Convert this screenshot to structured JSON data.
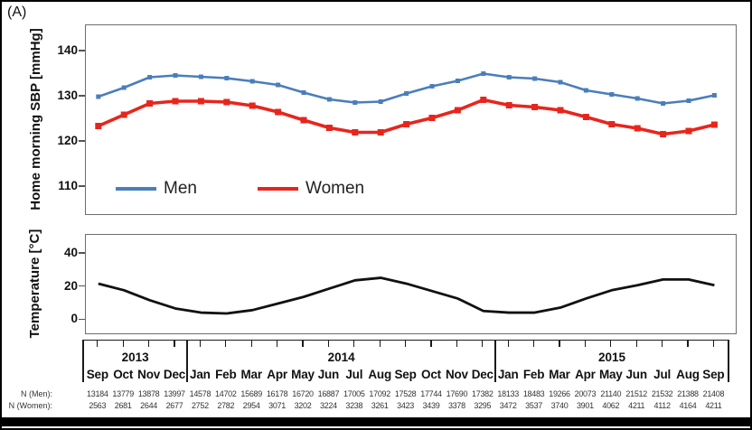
{
  "panel_label": "(A)",
  "sbp_chart": {
    "y_axis_label": "Home morning SBP [mmHg]",
    "y_ticks": [
      140,
      130,
      120,
      110
    ],
    "legend": [
      {
        "label": "Men",
        "color": "#4A7EBB"
      },
      {
        "label": "Women",
        "color": "#E8251C"
      }
    ]
  },
  "temp_chart": {
    "y_axis_label": "Temperature [°C]",
    "y_ticks": [
      40,
      20,
      0
    ]
  },
  "x_axis": {
    "year_groups": [
      {
        "year": "2013",
        "months": [
          "Sep",
          "Oct",
          "Nov",
          "Dec"
        ]
      },
      {
        "year": "2014",
        "months": [
          "Jan",
          "Feb",
          "Mar",
          "Apr",
          "May",
          "Jun",
          "Jul",
          "Aug",
          "Sep",
          "Oct",
          "Nov",
          "Dec"
        ]
      },
      {
        "year": "2015",
        "months": [
          "Jan",
          "Feb",
          "Mar",
          "Apr",
          "May",
          "Jun",
          "Jul",
          "Aug",
          "Sep"
        ]
      }
    ]
  },
  "n_rows": [
    {
      "label": "N (Men):",
      "values": [
        13184,
        13779,
        13878,
        13997,
        14578,
        14702,
        15689,
        16178,
        16720,
        16887,
        17005,
        17092,
        17528,
        17744,
        17690,
        17382,
        18133,
        18483,
        19266,
        20073,
        21140,
        21512,
        21532,
        21388,
        21408
      ]
    },
    {
      "label": "N (Women):",
      "values": [
        2563,
        2681,
        2644,
        2677,
        2752,
        2782,
        2954,
        3071,
        3202,
        3224,
        3238,
        3261,
        3423,
        3439,
        3378,
        3295,
        3472,
        3537,
        3740,
        3901,
        4062,
        4211,
        4112,
        4164,
        4211
      ]
    }
  ],
  "chart_data": [
    {
      "type": "line",
      "title": "Home morning SBP by month",
      "ylabel": "Home morning SBP [mmHg]",
      "ylim": [
        104,
        146
      ],
      "yticks": [
        110,
        120,
        130,
        140
      ],
      "grid": false,
      "legend_position": "inside bottom-left",
      "categories": [
        "Sep 2013",
        "Oct 2013",
        "Nov 2013",
        "Dec 2013",
        "Jan 2014",
        "Feb 2014",
        "Mar 2014",
        "Apr 2014",
        "May 2014",
        "Jun 2014",
        "Jul 2014",
        "Aug 2014",
        "Sep 2014",
        "Oct 2014",
        "Nov 2014",
        "Dec 2014",
        "Jan 2015",
        "Feb 2015",
        "Mar 2015",
        "Apr 2015",
        "May 2015",
        "Jun 2015",
        "Jul 2015",
        "Aug 2015",
        "Sep 2015"
      ],
      "series": [
        {
          "name": "Men",
          "color": "#4A7EBB",
          "marker": "square",
          "values": [
            130.0,
            132.0,
            134.3,
            134.7,
            134.4,
            134.1,
            133.4,
            132.6,
            130.9,
            129.4,
            128.7,
            128.9,
            130.7,
            132.3,
            133.5,
            135.1,
            134.3,
            134.0,
            133.2,
            131.4,
            130.5,
            129.6,
            128.5,
            129.1,
            130.3
          ]
        },
        {
          "name": "Women",
          "color": "#E8251C",
          "marker": "square",
          "values": [
            123.5,
            126.0,
            128.5,
            129.0,
            129.0,
            128.8,
            128.0,
            126.6,
            124.8,
            123.1,
            122.1,
            122.1,
            123.9,
            125.3,
            127.0,
            129.3,
            128.1,
            127.7,
            127.0,
            125.5,
            123.9,
            123.0,
            121.7,
            122.4,
            123.8
          ]
        }
      ]
    },
    {
      "type": "line",
      "title": "Monthly temperature",
      "ylabel": "Temperature [°C]",
      "ylim": [
        -9,
        51
      ],
      "yticks": [
        0,
        20,
        40
      ],
      "grid": false,
      "legend_position": "none",
      "categories": [
        "Sep 2013",
        "Oct 2013",
        "Nov 2013",
        "Dec 2013",
        "Jan 2014",
        "Feb 2014",
        "Mar 2014",
        "Apr 2014",
        "May 2014",
        "Jun 2014",
        "Jul 2014",
        "Aug 2014",
        "Sep 2014",
        "Oct 2014",
        "Nov 2014",
        "Dec 2014",
        "Jan 2015",
        "Feb 2015",
        "Mar 2015",
        "Apr 2015",
        "May 2015",
        "Jun 2015",
        "Jul 2015",
        "Aug 2015",
        "Sep 2015"
      ],
      "series": [
        {
          "name": "Temperature",
          "color": "#111111",
          "marker": "none",
          "values": [
            22,
            18,
            12,
            7,
            4.5,
            4,
            6,
            10,
            14,
            19,
            24,
            25.5,
            22,
            17.5,
            13,
            5.5,
            4.5,
            4.5,
            7.5,
            13,
            18,
            21,
            24.5,
            24.5,
            21
          ]
        }
      ]
    }
  ]
}
